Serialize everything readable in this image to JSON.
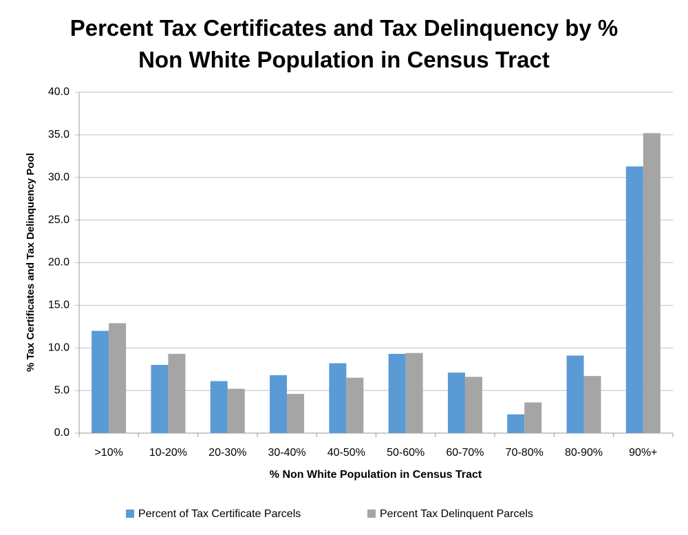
{
  "chart_data": {
    "type": "bar",
    "title": "Percent Tax Certificates and Tax Delinquency by % Non White Population in Census Tract",
    "x_label": "% Non White Population in Census Tract",
    "y_label": "% Tax Certificates and Tax Delinquency Pool",
    "categories": [
      ">10%",
      "10-20%",
      "20-30%",
      "30-40%",
      "40-50%",
      "50-60%",
      "60-70%",
      "70-80%",
      "80-90%",
      "90%+"
    ],
    "series": [
      {
        "name": "Percent of Tax Certificate Parcels",
        "color": "#5b9bd5",
        "values": [
          12.0,
          8.0,
          6.1,
          6.8,
          8.2,
          9.3,
          7.1,
          2.2,
          9.1,
          31.3
        ]
      },
      {
        "name": "Percent Tax Delinquent Parcels",
        "color": "#a5a5a5",
        "values": [
          12.9,
          9.3,
          5.2,
          4.6,
          6.5,
          9.4,
          6.6,
          3.6,
          6.7,
          35.2
        ]
      }
    ],
    "ylim": [
      0,
      40
    ],
    "yticks": [
      {
        "value": 0,
        "label": "0.0"
      },
      {
        "value": 5,
        "label": "5.0"
      },
      {
        "value": 10,
        "label": "10.0"
      },
      {
        "value": 15,
        "label": "15.0"
      },
      {
        "value": 20,
        "label": "20.0"
      },
      {
        "value": 25,
        "label": "25.0"
      },
      {
        "value": 30,
        "label": "30.0"
      },
      {
        "value": 35,
        "label": "35.0"
      },
      {
        "value": 40,
        "label": "40.0"
      }
    ],
    "grid": true,
    "legend": "bottom"
  }
}
